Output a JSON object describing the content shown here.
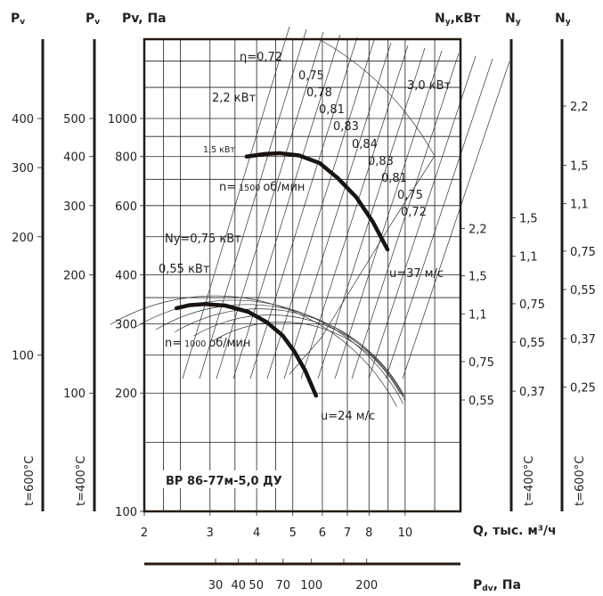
{
  "headers": {
    "pv600": {
      "main": "P",
      "sub": "v"
    },
    "pv400": {
      "main": "P",
      "sub": "v"
    },
    "pv_main": {
      "main": "P",
      "sub": "v",
      "unit": ", Па"
    },
    "ny_main": {
      "main": "N",
      "sub": "у",
      "unit": ",кВт"
    },
    "ny400": {
      "main": "N",
      "sub": "у"
    },
    "ny600": {
      "main": "N",
      "sub": "у"
    },
    "pdv": {
      "main": "P",
      "sub": "dv",
      "unit": ", Па"
    },
    "q": "Q, тыс. м³/ч",
    "t400_left": "t=400°C",
    "t600_left": "t=600°C",
    "t400_right": "t=400°C",
    "t600_right": "t=600°C"
  },
  "title": "ВР 86-77м-5,0 ДУ",
  "annotations": {
    "eta": [
      "η=0,72",
      "0,75",
      "0,78",
      "0,81",
      "0,83",
      "0,84",
      "0,83",
      "0,81",
      "0,75",
      "0,72"
    ],
    "p22": "2,2 кВт",
    "p30": "3,0 кВт",
    "p15": "1,5 кВт",
    "n1500_a": "n=",
    "n1500_b": "1500",
    "n1500_c": "об/мин",
    "ny075": "Nу=0,75 кВт",
    "p055": "0,55 кВт",
    "n1000_a": "n=",
    "n1000_b": "1000",
    "n1000_c": "об/мин",
    "u37": "u=37 м/с",
    "u24": "u=24 м/с"
  },
  "chart_data": {
    "type": "line",
    "title": "ВР 86-77м-5,0 ДУ",
    "xlabel": "Q, тыс. м³/ч",
    "ylabel": "Pv, Па",
    "xscale": "log",
    "yscale": "log",
    "xlim": [
      2,
      13
    ],
    "ylim": [
      100,
      1600
    ],
    "x_ticks": [
      {
        "v": 2,
        "l": "2"
      },
      {
        "v": 3,
        "l": "3"
      },
      {
        "v": 4,
        "l": "4"
      },
      {
        "v": 5,
        "l": "5"
      },
      {
        "v": 6,
        "l": "6"
      },
      {
        "v": 7,
        "l": "7"
      },
      {
        "v": 8,
        "l": "8"
      },
      {
        "v": 10,
        "l": "10"
      }
    ],
    "y_ticks": [
      {
        "v": 100,
        "l": "100"
      },
      {
        "v": 200,
        "l": "200"
      },
      {
        "v": 300,
        "l": "300"
      },
      {
        "v": 400,
        "l": "400"
      },
      {
        "v": 600,
        "l": "600"
      },
      {
        "v": 800,
        "l": "800"
      },
      {
        "v": 1000,
        "l": "1000"
      }
    ],
    "pv400_ticks": [
      {
        "v": 100,
        "l": "100"
      },
      {
        "v": 200,
        "l": "200"
      },
      {
        "v": 300,
        "l": "300"
      },
      {
        "v": 400,
        "l": "400"
      },
      {
        "v": 500,
        "l": "500"
      }
    ],
    "pv600_ticks": [
      {
        "v": 100,
        "l": "100"
      },
      {
        "v": 200,
        "l": "200"
      },
      {
        "v": 300,
        "l": "300"
      },
      {
        "v": 400,
        "l": "400"
      }
    ],
    "ny_ticks": [
      "2,2",
      "1,5",
      "1,1",
      "0,75",
      "0,55"
    ],
    "ny400_ticks": [
      "1,5",
      "1,1",
      "0,75",
      "0,55",
      "0,37"
    ],
    "ny600_ticks": [
      "2,2",
      "1,5",
      "1,1",
      "0,75",
      "0,55",
      "0,37",
      "0,25"
    ],
    "pdv_ticks": [
      {
        "v": 30,
        "l": "30"
      },
      {
        "v": 40,
        "l": "40"
      },
      {
        "v": 50,
        "l": "50"
      },
      {
        "v": 70,
        "l": "70"
      },
      {
        "v": 100,
        "l": "100"
      },
      {
        "v": 200,
        "l": "200"
      }
    ],
    "series": [
      {
        "name": "n=1500 об/мин",
        "x": [
          3.76,
          4.2,
          4.6,
          5.2,
          5.9,
          6.6,
          7.4,
          8.2,
          8.97
        ],
        "y": [
          800,
          812,
          816,
          805,
          770,
          705,
          630,
          545,
          464
        ]
      },
      {
        "name": "n=1000 об/мин",
        "x": [
          2.44,
          2.65,
          2.9,
          3.3,
          3.8,
          4.26,
          4.7,
          5.05,
          5.4,
          5.77
        ],
        "y": [
          329,
          335,
          337,
          334,
          322,
          303,
          280,
          255,
          228,
          197
        ]
      }
    ]
  }
}
